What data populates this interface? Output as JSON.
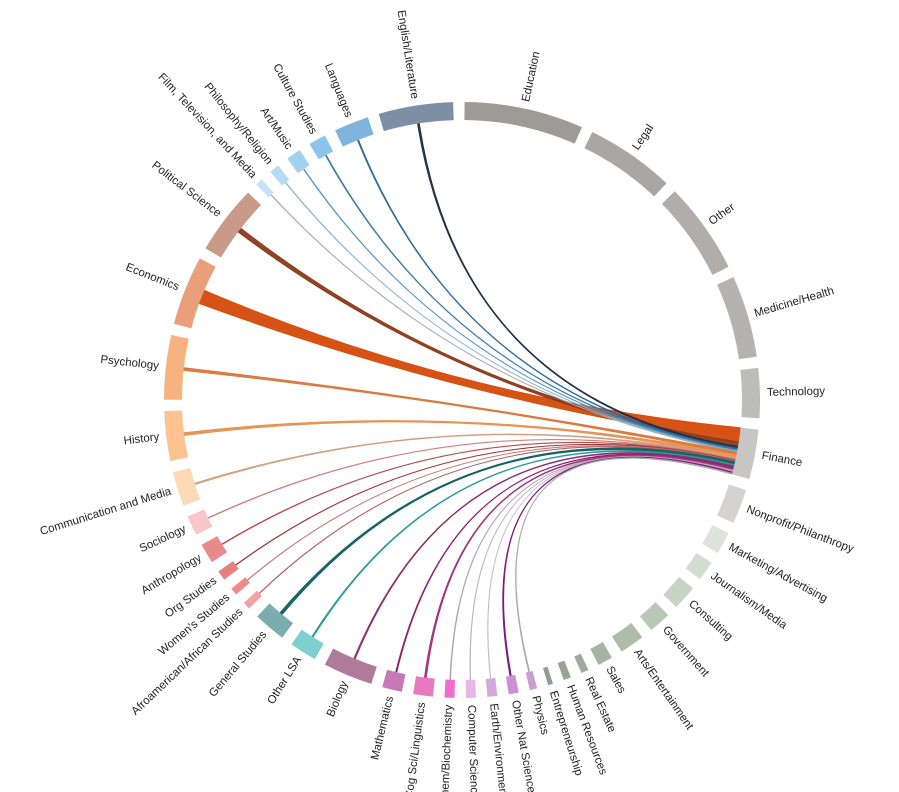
{
  "chart_data": {
    "type": "chord",
    "nodes": [
      {
        "name": "Education",
        "value": 24,
        "color": "#9e9a96"
      },
      {
        "name": "Legal",
        "value": 18,
        "color": "#a9a6a3"
      },
      {
        "name": "Other",
        "value": 18.5,
        "color": "#b0adab"
      },
      {
        "name": "Medicine/Health",
        "value": 16.5,
        "color": "#b5b3b1"
      },
      {
        "name": "Technology",
        "value": 10,
        "color": "#bebcba"
      },
      {
        "name": "Finance",
        "value": 10,
        "color": "#c8c6c4"
      },
      {
        "name": "Nonprofit/Philanthropy",
        "value": 7,
        "color": "#d5d3d2"
      },
      {
        "name": "Marketing/Advertising",
        "value": 4.5,
        "color": "#dde2dc"
      },
      {
        "name": "Journalism/Media",
        "value": 4,
        "color": "#d2dcd0"
      },
      {
        "name": "Consulting",
        "value": 5,
        "color": "#c5d4c3"
      },
      {
        "name": "Government",
        "value": 4.5,
        "color": "#b8c8b6"
      },
      {
        "name": "Arts/Entertainment",
        "value": 5,
        "color": "#adbda9"
      },
      {
        "name": "Sales",
        "value": 3,
        "color": "#a5b5a3"
      },
      {
        "name": "Real Estate",
        "value": 1.5,
        "color": "#9cac99"
      },
      {
        "name": "Human Resources",
        "value": 1.5,
        "color": "#95a592"
      },
      {
        "name": "Entrepreneurship",
        "value": 1,
        "color": "#8e9e8b"
      },
      {
        "name": "Physics",
        "value": 1.5,
        "color": "#c89fd0"
      },
      {
        "name": "Other Nat Science",
        "value": 2,
        "color": "#cc8fd4"
      },
      {
        "name": "Earth/Environment",
        "value": 2,
        "color": "#d4a8dc"
      },
      {
        "name": "Computer Science",
        "value": 2,
        "color": "#e8b6e8"
      },
      {
        "name": "Chem/Biochemistry",
        "value": 2,
        "color": "#f06ec9"
      },
      {
        "name": "Cog Sci/Linguistics",
        "value": 4,
        "color": "#e879c1"
      },
      {
        "name": "Mathematics",
        "value": 4,
        "color": "#c878b5"
      },
      {
        "name": "Biology",
        "value": 10,
        "color": "#b07a9a"
      },
      {
        "name": "Other LSA",
        "value": 5.5,
        "color": "#7fcfd0"
      },
      {
        "name": "General Studies",
        "value": 6.5,
        "color": "#7aadad"
      },
      {
        "name": "Afroamerican/African Studies",
        "value": 1.5,
        "color": "#f4a3a3"
      },
      {
        "name": "Women's Studies",
        "value": 1.5,
        "color": "#f08a8a"
      },
      {
        "name": "Org Studies",
        "value": 2,
        "color": "#e87f7f"
      },
      {
        "name": "Anthropology",
        "value": 4,
        "color": "#e88a8a"
      },
      {
        "name": "Sociology",
        "value": 4,
        "color": "#f8c5c8"
      },
      {
        "name": "Communication and Media",
        "value": 7,
        "color": "#fdd9b5"
      },
      {
        "name": "History",
        "value": 10,
        "color": "#fdc28f"
      },
      {
        "name": "Psychology",
        "value": 13,
        "color": "#f6b27f"
      },
      {
        "name": "Economics",
        "value": 14,
        "color": "#e9a07a"
      },
      {
        "name": "Political Science",
        "value": 14,
        "color": "#c99a87"
      },
      {
        "name": "Film, Television, and Media",
        "value": 1.5,
        "color": "#c6e3f6"
      },
      {
        "name": "Philosophy/Religion",
        "value": 2,
        "color": "#b5dbf5"
      },
      {
        "name": "Art/Music",
        "value": 3,
        "color": "#9fd1f1"
      },
      {
        "name": "Culture Studies",
        "value": 3.5,
        "color": "#8cc4ec"
      },
      {
        "name": "Languages",
        "value": 7,
        "color": "#7fb4dc"
      },
      {
        "name": "English/Literature",
        "value": 15,
        "color": "#7d8fa5"
      }
    ],
    "links": [
      {
        "source": "Economics",
        "target": "Finance",
        "value": 3,
        "color": "#d44a08"
      },
      {
        "source": "Political Science",
        "target": "Finance",
        "value": 1,
        "color": "#8a3a1a"
      },
      {
        "source": "English/Literature",
        "target": "Finance",
        "value": 0.4,
        "color": "#1f2f4a"
      },
      {
        "source": "Languages",
        "target": "Finance",
        "value": 0.25,
        "color": "#2d6a9a"
      },
      {
        "source": "Culture Studies",
        "target": "Finance",
        "value": 0.2,
        "color": "#3a7ca8"
      },
      {
        "source": "Art/Music",
        "target": "Finance",
        "value": 0.15,
        "color": "#5a9ac4"
      },
      {
        "source": "Philosophy/Religion",
        "target": "Finance",
        "value": 0.1,
        "color": "#8ab4d0"
      },
      {
        "source": "Film, Television, and Media",
        "target": "Finance",
        "value": 0.1,
        "color": "#aaaaaa"
      },
      {
        "source": "Psychology",
        "target": "Finance",
        "value": 0.6,
        "color": "#d9773a"
      },
      {
        "source": "History",
        "target": "Finance",
        "value": 0.6,
        "color": "#e89050"
      },
      {
        "source": "Communication and Media",
        "target": "Finance",
        "value": 0.3,
        "color": "#d0a080"
      },
      {
        "source": "Sociology",
        "target": "Finance",
        "value": 0.15,
        "color": "#d08080"
      },
      {
        "source": "Anthropology",
        "target": "Finance",
        "value": 0.15,
        "color": "#b84a4a"
      },
      {
        "source": "Org Studies",
        "target": "Finance",
        "value": 0.1,
        "color": "#a03030"
      },
      {
        "source": "Women's Studies",
        "target": "Finance",
        "value": 0.1,
        "color": "#c08080"
      },
      {
        "source": "Afroamerican/African Studies",
        "target": "Finance",
        "value": 0.1,
        "color": "#b06060"
      },
      {
        "source": "General Studies",
        "target": "Finance",
        "value": 0.6,
        "color": "#0f5f5f"
      },
      {
        "source": "Other LSA",
        "target": "Finance",
        "value": 0.3,
        "color": "#2a9a9a"
      },
      {
        "source": "Biology",
        "target": "Finance",
        "value": 0.3,
        "color": "#8a3070"
      },
      {
        "source": "Mathematics",
        "target": "Finance",
        "value": 0.25,
        "color": "#8a2070"
      },
      {
        "source": "Cog Sci/Linguistics",
        "target": "Finance",
        "value": 0.4,
        "color": "#a03080"
      },
      {
        "source": "Chem/Biochemistry",
        "target": "Finance",
        "value": 0.15,
        "color": "#b0a0b0"
      },
      {
        "source": "Computer Science",
        "target": "Finance",
        "value": 0.1,
        "color": "#c0b0c0"
      },
      {
        "source": "Earth/Environment",
        "target": "Finance",
        "value": 0.1,
        "color": "#c0c0c0"
      },
      {
        "source": "Other Nat Science",
        "target": "Finance",
        "value": 0.3,
        "color": "#7a1a7a"
      },
      {
        "source": "Physics",
        "target": "Finance",
        "value": 0.2,
        "color": "#aaaaaa"
      }
    ]
  }
}
